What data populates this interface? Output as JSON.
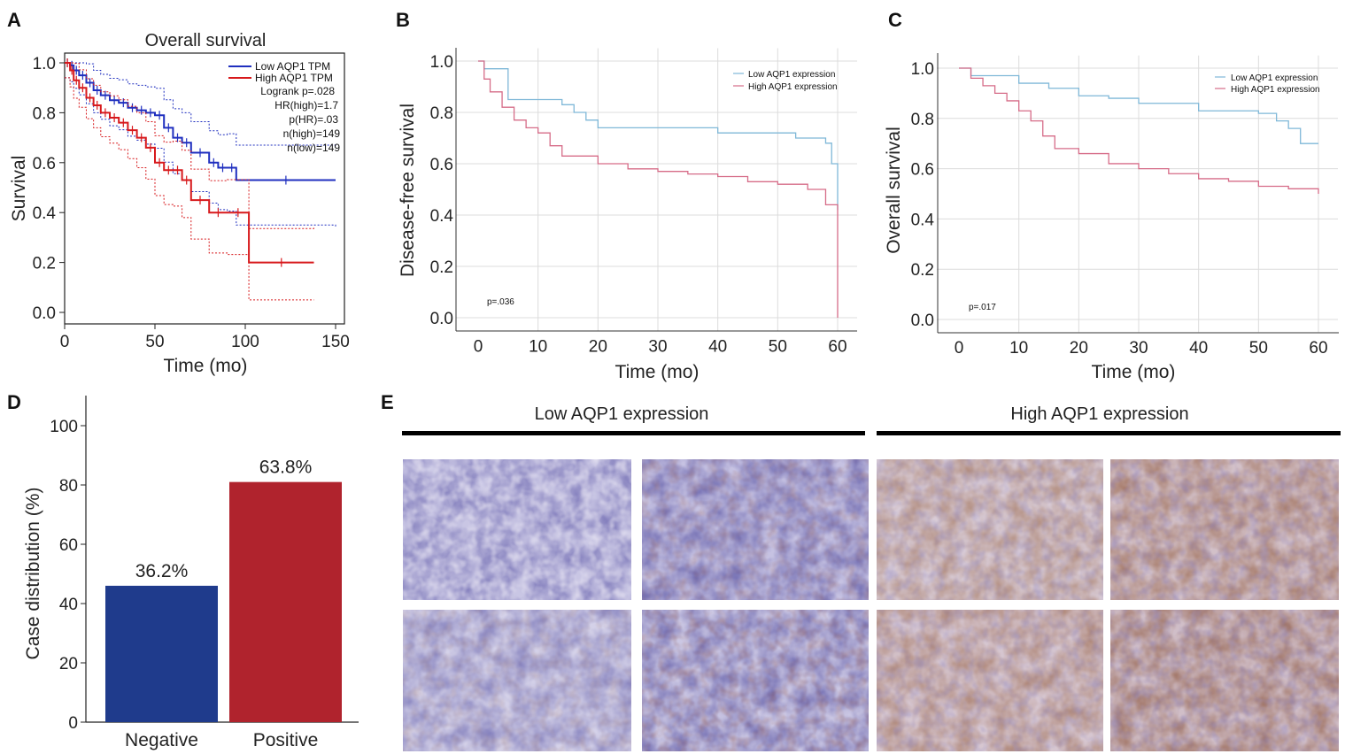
{
  "chart_data": [
    {
      "panel": "A",
      "type": "line",
      "title": "Overall survival",
      "xlabel": "Time (mo)",
      "ylabel": "Survival",
      "xlim": [
        0,
        150
      ],
      "ylim": [
        0,
        1
      ],
      "xticks": [
        0,
        50,
        100,
        150
      ],
      "yticks": [
        "0.0",
        "0.2",
        "0.4",
        "0.6",
        "0.8",
        "1.0"
      ],
      "legend": {
        "placement": "top-right"
      },
      "stats": [
        "Logrank p=.028",
        "HR(high)=1.7",
        "p(HR)=.03",
        "n(high)=149",
        "n(low)=149"
      ],
      "series": [
        {
          "name": "Low AQP1 TPM",
          "color": "#1f2fbf",
          "x": [
            0,
            3,
            5,
            8,
            12,
            16,
            20,
            25,
            30,
            35,
            40,
            45,
            50,
            55,
            60,
            65,
            70,
            80,
            85,
            90,
            95,
            150
          ],
          "y": [
            1.0,
            0.99,
            0.97,
            0.95,
            0.92,
            0.89,
            0.87,
            0.85,
            0.84,
            0.82,
            0.81,
            0.8,
            0.79,
            0.74,
            0.7,
            0.68,
            0.64,
            0.6,
            0.58,
            0.58,
            0.53,
            0.53
          ]
        },
        {
          "name": "High AQP1 TPM",
          "color": "#d7191c",
          "x": [
            0,
            3,
            5,
            8,
            12,
            16,
            20,
            25,
            30,
            35,
            40,
            45,
            50,
            55,
            60,
            65,
            70,
            80,
            90,
            102,
            138
          ],
          "y": [
            1.0,
            0.97,
            0.93,
            0.9,
            0.86,
            0.83,
            0.8,
            0.78,
            0.76,
            0.73,
            0.7,
            0.66,
            0.6,
            0.57,
            0.57,
            0.53,
            0.45,
            0.4,
            0.4,
            0.2,
            0.2
          ]
        }
      ]
    },
    {
      "panel": "B",
      "type": "line",
      "xlabel": "Time (mo)",
      "ylabel": "Disease-free survival",
      "xlim": [
        0,
        60
      ],
      "ylim": [
        0,
        1
      ],
      "xticks": [
        0,
        10,
        20,
        30,
        40,
        50,
        60
      ],
      "yticks": [
        "0.0",
        "0.2",
        "0.4",
        "0.6",
        "0.8",
        "1.0"
      ],
      "grid": true,
      "legend": {
        "placement": "top-right"
      },
      "annotation": "p=.036",
      "series": [
        {
          "name": "Low AQP1 expression",
          "color": "#7fb8d8",
          "x": [
            0,
            1,
            5,
            10,
            14,
            16,
            18,
            20,
            30,
            40,
            50,
            53,
            58,
            59,
            60
          ],
          "y": [
            1.0,
            0.97,
            0.85,
            0.85,
            0.83,
            0.8,
            0.77,
            0.74,
            0.74,
            0.72,
            0.72,
            0.7,
            0.68,
            0.6,
            0.42
          ]
        },
        {
          "name": "High AQP1 expression",
          "color": "#d66c88",
          "x": [
            0,
            1,
            2,
            4,
            6,
            8,
            10,
            12,
            14,
            20,
            25,
            30,
            35,
            40,
            45,
            50,
            55,
            58,
            60
          ],
          "y": [
            1.0,
            0.93,
            0.88,
            0.82,
            0.77,
            0.74,
            0.72,
            0.67,
            0.63,
            0.6,
            0.58,
            0.57,
            0.56,
            0.55,
            0.53,
            0.52,
            0.5,
            0.44,
            0.0
          ]
        }
      ]
    },
    {
      "panel": "C",
      "type": "line",
      "xlabel": "Time (mo)",
      "ylabel": "Overall survival",
      "xlim": [
        0,
        60
      ],
      "ylim": [
        0,
        1
      ],
      "xticks": [
        0,
        10,
        20,
        30,
        40,
        50,
        60
      ],
      "yticks": [
        "0.0",
        "0.2",
        "0.4",
        "0.6",
        "0.8",
        "1.0"
      ],
      "grid": true,
      "legend": {
        "placement": "top-right"
      },
      "annotation": "p=.017",
      "series": [
        {
          "name": "Low AQP1 expression",
          "color": "#7fb8d8",
          "x": [
            0,
            2,
            10,
            15,
            20,
            25,
            30,
            40,
            45,
            50,
            53,
            55,
            57,
            60
          ],
          "y": [
            1.0,
            0.97,
            0.94,
            0.92,
            0.89,
            0.88,
            0.86,
            0.83,
            0.83,
            0.82,
            0.79,
            0.76,
            0.7,
            0.7
          ]
        },
        {
          "name": "High AQP1 expression",
          "color": "#d66c88",
          "x": [
            0,
            2,
            4,
            6,
            8,
            10,
            12,
            14,
            16,
            20,
            25,
            30,
            35,
            40,
            45,
            50,
            55,
            60
          ],
          "y": [
            1.0,
            0.96,
            0.93,
            0.9,
            0.87,
            0.83,
            0.79,
            0.73,
            0.68,
            0.66,
            0.62,
            0.6,
            0.58,
            0.56,
            0.55,
            0.53,
            0.52,
            0.5
          ]
        }
      ]
    },
    {
      "panel": "D",
      "type": "bar",
      "categories": [
        "Negative",
        "Positive"
      ],
      "values": [
        46,
        81
      ],
      "data_labels": [
        "36.2%",
        "63.8%"
      ],
      "colors": [
        "#1f3b8c",
        "#b0232d"
      ],
      "ylabel": "Case distribution (%)",
      "ylim": [
        0,
        100
      ],
      "yticks": [
        "0",
        "20",
        "40",
        "60",
        "80",
        "100"
      ]
    }
  ],
  "panel_labels": [
    "A",
    "B",
    "C",
    "D",
    "E"
  ],
  "panel_e": {
    "headers": [
      "Low AQP1 expression",
      "High AQP1 expression"
    ]
  }
}
